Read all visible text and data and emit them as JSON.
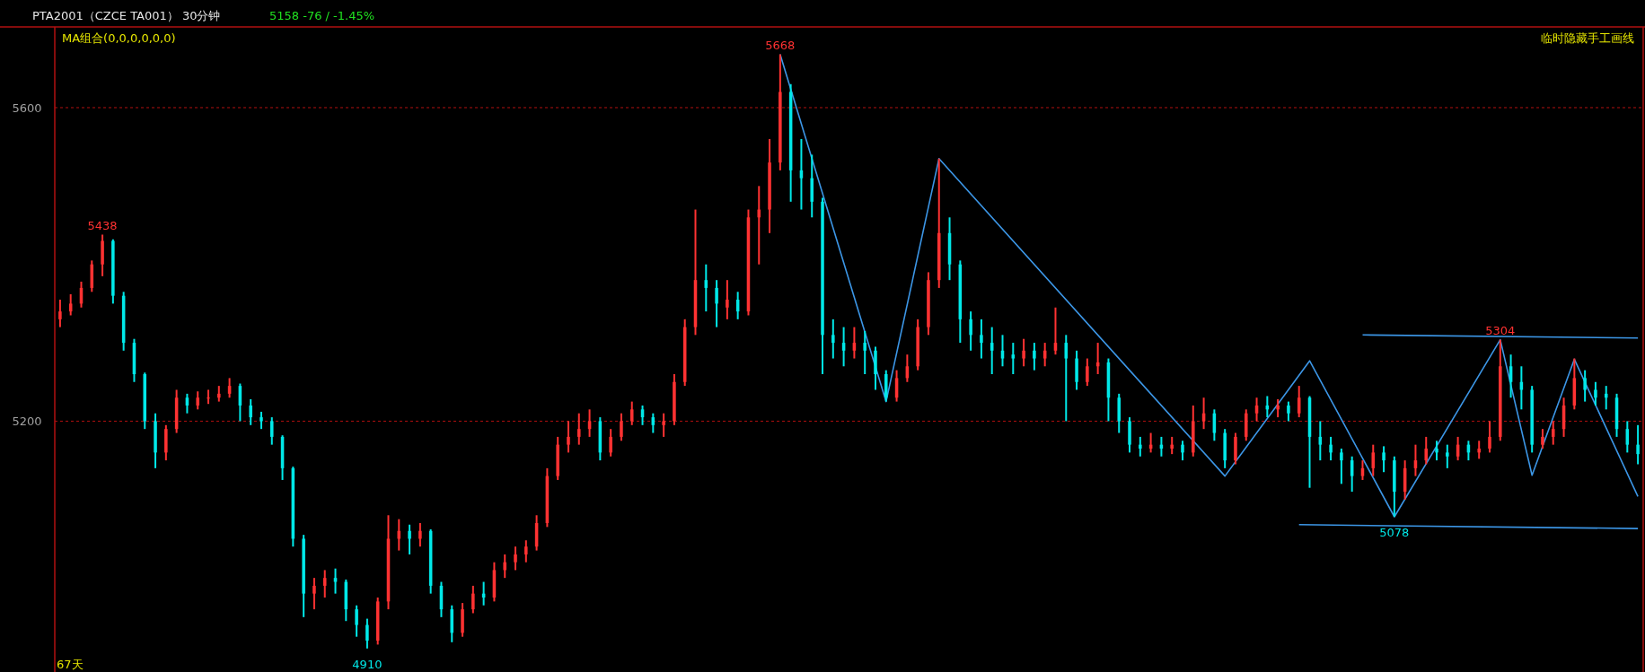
{
  "chart_data": {
    "type": "candlestick",
    "title": "PTA2001（CZCE TA001） 30分钟",
    "subtitle": "5158  -76 / -1.45%",
    "annotations": [
      "MA组合(0,0,0,0,0,0)",
      "临时隐藏手工画线",
      "67天",
      {
        "text": "5438",
        "y": 5438
      },
      {
        "text": "5668",
        "y": 5668
      },
      {
        "text": "4910",
        "y": 4910
      },
      {
        "text": "5078",
        "y": 5078
      },
      {
        "text": "5304",
        "y": 5304
      }
    ],
    "colors": [
      "#ff3232",
      "#ff3232",
      "#ff3232",
      "#ff3232",
      "#ff3232",
      "#00e8e8",
      "#00e8e8",
      "#00e8e8",
      "#00e8e8",
      "#00e8e8",
      "#ff3232",
      "#ff3232",
      "#00e8e8",
      "#ff3232",
      "#ff3232",
      "#ff3232",
      "#ff3232",
      "#00e8e8",
      "#00e8e8",
      "#00e8e8",
      "#00e8e8",
      "#00e8e8",
      "#00e8e8",
      "#00e8e8",
      "#ff3232",
      "#ff3232",
      "#00e8e8",
      "#00e8e8",
      "#00e8e8",
      "#00e8e8",
      "#ff3232",
      "#ff3232",
      "#ff3232",
      "#00e8e8",
      "#ff3232",
      "#00e8e8",
      "#00e8e8",
      "#00e8e8",
      "#ff3232",
      "#ff3232",
      "#00e8e8",
      "#ff3232",
      "#ff3232",
      "#ff3232",
      "#ff3232",
      "#ff3232",
      "#ff3232",
      "#ff3232",
      "#ff3232",
      "#ff3232",
      "#ff3232",
      "#00e8e8",
      "#ff3232",
      "#ff3232",
      "#ff3232",
      "#00e8e8",
      "#00e8e8",
      "#ff3232",
      "#ff3232",
      "#ff3232",
      "#ff3232",
      "#00e8e8",
      "#00e8e8",
      "#ff3232",
      "#00e8e8",
      "#ff3232",
      "#ff3232",
      "#ff3232",
      "#ff3232",
      "#00e8e8",
      "#00e8e8",
      "#00e8e8",
      "#00e8e8",
      "#00e8e8",
      "#00e8e8",
      "#ff3232",
      "#00e8e8",
      "#00e8e8",
      "#00e8e8",
      "#ff3232",
      "#ff3232",
      "#ff3232",
      "#ff3232",
      "#ff3232",
      "#00e8e8",
      "#00e8e8",
      "#00e8e8",
      "#00e8e8",
      "#00e8e8",
      "#00e8e8",
      "#00e8e8",
      "#ff3232",
      "#00e8e8",
      "#ff3232",
      "#ff3232",
      "#00e8e8",
      "#00e8e8",
      "#ff3232",
      "#ff3232",
      "#00e8e8",
      "#00e8e8",
      "#00e8e8",
      "#00e8e8",
      "#ff3232",
      "#00e8e8",
      "#ff3232",
      "#00e8e8",
      "#ff3232",
      "#ff3232",
      "#00e8e8",
      "#00e8e8",
      "#ff3232",
      "#ff3232",
      "#ff3232",
      "#00e8e8",
      "#ff3232",
      "#00e8e8",
      "#ff3232",
      "#00e8e8",
      "#00e8e8",
      "#00e8e8",
      "#00e8e8",
      "#00e8e8",
      "#ff3232",
      "#ff3232",
      "#00e8e8",
      "#00e8e8",
      "#ff3232",
      "#ff3232",
      "#ff3232",
      "#00e8e8",
      "#00e8e8",
      "#ff3232",
      "#00e8e8",
      "#ff3232",
      "#ff3232",
      "#ff3232",
      "#00e8e8",
      "#00e8e8",
      "#00e8e8",
      "#ff3232",
      "#ff3232",
      "#ff3232",
      "#ff3232",
      "#00e8e8",
      "#00e8e8",
      "#00e8e8",
      "#00e8e8",
      "#00e8e8",
      "#00e8e8"
    ],
    "ylim": [
      4880,
      5703
    ],
    "yticks": [
      5200,
      5600
    ],
    "grid": "y",
    "categories": [
      null,
      null,
      null,
      null,
      null,
      null,
      null,
      null,
      null,
      null,
      null,
      null,
      null,
      null,
      null,
      null,
      null,
      null,
      null,
      null,
      null,
      null,
      null,
      null,
      null,
      null,
      null,
      null,
      null,
      null,
      null,
      null,
      null,
      null,
      null,
      null,
      null,
      null,
      null,
      null,
      null,
      null,
      null,
      null,
      null,
      null,
      null,
      null,
      null,
      null,
      null,
      null,
      null,
      null,
      null,
      null,
      null,
      null,
      null,
      null,
      null,
      null,
      null,
      null,
      null,
      null,
      null,
      null,
      null,
      null,
      null,
      null,
      null,
      null,
      null,
      null,
      null,
      null,
      null,
      null,
      null,
      null,
      null,
      null,
      null,
      null,
      null,
      null,
      null,
      null,
      null,
      null,
      null,
      null,
      null,
      null,
      null,
      null,
      null,
      null,
      null,
      null,
      null,
      null,
      null,
      null,
      null,
      null,
      null,
      null,
      null,
      null,
      null,
      null,
      null,
      null,
      null,
      null,
      null,
      null,
      null,
      null,
      null,
      null,
      null,
      null,
      null,
      null,
      null,
      null,
      null,
      null,
      null,
      null,
      null,
      null,
      null,
      null,
      null,
      null,
      null,
      null,
      null,
      null,
      null,
      null,
      null,
      null,
      null,
      null
    ],
    "ohlc": [
      [
        5330,
        5355,
        5320,
        5340
      ],
      [
        5340,
        5362,
        5335,
        5350
      ],
      [
        5350,
        5378,
        5345,
        5370
      ],
      [
        5370,
        5405,
        5365,
        5400
      ],
      [
        5400,
        5438,
        5385,
        5430
      ],
      [
        5430,
        5432,
        5350,
        5360
      ],
      [
        5360,
        5365,
        5290,
        5300
      ],
      [
        5300,
        5305,
        5250,
        5260
      ],
      [
        5260,
        5262,
        5190,
        5200
      ],
      [
        5200,
        5210,
        5140,
        5160
      ],
      [
        5160,
        5195,
        5150,
        5190
      ],
      [
        5190,
        5240,
        5185,
        5230
      ],
      [
        5230,
        5235,
        5210,
        5220
      ],
      [
        5220,
        5238,
        5215,
        5230
      ],
      [
        5230,
        5240,
        5222,
        5230
      ],
      [
        5230,
        5245,
        5225,
        5235
      ],
      [
        5235,
        5255,
        5230,
        5245
      ],
      [
        5245,
        5248,
        5200,
        5220
      ],
      [
        5220,
        5228,
        5195,
        5205
      ],
      [
        5205,
        5212,
        5190,
        5200
      ],
      [
        5200,
        5205,
        5170,
        5180
      ],
      [
        5180,
        5182,
        5125,
        5140
      ],
      [
        5140,
        5142,
        5040,
        5050
      ],
      [
        5050,
        5055,
        4950,
        4980
      ],
      [
        4980,
        5000,
        4960,
        4990
      ],
      [
        4990,
        5010,
        4975,
        5000
      ],
      [
        5000,
        5012,
        4980,
        4995
      ],
      [
        4995,
        4998,
        4945,
        4960
      ],
      [
        4960,
        4965,
        4925,
        4940
      ],
      [
        4940,
        4948,
        4910,
        4920
      ],
      [
        4920,
        4975,
        4915,
        4970
      ],
      [
        4970,
        5080,
        4960,
        5050
      ],
      [
        5050,
        5075,
        5035,
        5060
      ],
      [
        5060,
        5068,
        5030,
        5050
      ],
      [
        5050,
        5070,
        5040,
        5060
      ],
      [
        5060,
        5062,
        4980,
        4990
      ],
      [
        4990,
        4995,
        4950,
        4960
      ],
      [
        4960,
        4965,
        4918,
        4930
      ],
      [
        4930,
        4968,
        4925,
        4960
      ],
      [
        4960,
        4990,
        4955,
        4980
      ],
      [
        4980,
        4995,
        4965,
        4975
      ],
      [
        4975,
        5020,
        4970,
        5010
      ],
      [
        5010,
        5030,
        5000,
        5020
      ],
      [
        5020,
        5040,
        5010,
        5030
      ],
      [
        5030,
        5048,
        5020,
        5040
      ],
      [
        5040,
        5080,
        5035,
        5070
      ],
      [
        5070,
        5140,
        5065,
        5130
      ],
      [
        5130,
        5180,
        5125,
        5170
      ],
      [
        5170,
        5200,
        5160,
        5180
      ],
      [
        5180,
        5210,
        5170,
        5190
      ],
      [
        5190,
        5215,
        5180,
        5200
      ],
      [
        5200,
        5205,
        5150,
        5160
      ],
      [
        5160,
        5190,
        5155,
        5180
      ],
      [
        5180,
        5210,
        5175,
        5200
      ],
      [
        5200,
        5225,
        5195,
        5215
      ],
      [
        5215,
        5220,
        5195,
        5205
      ],
      [
        5205,
        5210,
        5185,
        5195
      ],
      [
        5195,
        5210,
        5180,
        5200
      ],
      [
        5200,
        5260,
        5195,
        5250
      ],
      [
        5250,
        5330,
        5245,
        5320
      ],
      [
        5320,
        5470,
        5310,
        5380
      ],
      [
        5380,
        5400,
        5340,
        5370
      ],
      [
        5370,
        5380,
        5320,
        5350
      ],
      [
        5345,
        5380,
        5330,
        5355
      ],
      [
        5355,
        5365,
        5330,
        5340
      ],
      [
        5340,
        5470,
        5335,
        5460
      ],
      [
        5460,
        5500,
        5400,
        5470
      ],
      [
        5470,
        5560,
        5440,
        5530
      ],
      [
        5530,
        5668,
        5520,
        5620
      ],
      [
        5620,
        5630,
        5480,
        5520
      ],
      [
        5520,
        5560,
        5470,
        5510
      ],
      [
        5510,
        5540,
        5460,
        5480
      ],
      [
        5480,
        5485,
        5260,
        5310
      ],
      [
        5310,
        5330,
        5280,
        5300
      ],
      [
        5300,
        5320,
        5270,
        5290
      ],
      [
        5290,
        5320,
        5280,
        5300
      ],
      [
        5300,
        5315,
        5260,
        5290
      ],
      [
        5290,
        5295,
        5240,
        5260
      ],
      [
        5260,
        5265,
        5225,
        5230
      ],
      [
        5230,
        5265,
        5225,
        5255
      ],
      [
        5255,
        5285,
        5250,
        5270
      ],
      [
        5270,
        5330,
        5265,
        5320
      ],
      [
        5320,
        5390,
        5310,
        5380
      ],
      [
        5380,
        5535,
        5370,
        5440
      ],
      [
        5440,
        5460,
        5380,
        5400
      ],
      [
        5400,
        5405,
        5300,
        5330
      ],
      [
        5330,
        5340,
        5290,
        5310
      ],
      [
        5310,
        5330,
        5280,
        5300
      ],
      [
        5300,
        5320,
        5260,
        5290
      ],
      [
        5290,
        5310,
        5270,
        5280
      ],
      [
        5285,
        5300,
        5260,
        5280
      ],
      [
        5280,
        5305,
        5270,
        5290
      ],
      [
        5290,
        5300,
        5265,
        5280
      ],
      [
        5280,
        5300,
        5270,
        5290
      ],
      [
        5290,
        5345,
        5285,
        5300
      ],
      [
        5300,
        5310,
        5200,
        5280
      ],
      [
        5280,
        5290,
        5240,
        5250
      ],
      [
        5250,
        5280,
        5245,
        5270
      ],
      [
        5270,
        5300,
        5260,
        5275
      ],
      [
        5275,
        5280,
        5200,
        5230
      ],
      [
        5230,
        5235,
        5185,
        5200
      ],
      [
        5200,
        5205,
        5160,
        5170
      ],
      [
        5170,
        5180,
        5155,
        5165
      ],
      [
        5165,
        5185,
        5160,
        5170
      ],
      [
        5170,
        5180,
        5155,
        5165
      ],
      [
        5165,
        5180,
        5158,
        5170
      ],
      [
        5170,
        5175,
        5150,
        5160
      ],
      [
        5160,
        5220,
        5155,
        5200
      ],
      [
        5200,
        5230,
        5190,
        5210
      ],
      [
        5210,
        5215,
        5175,
        5185
      ],
      [
        5185,
        5190,
        5140,
        5150
      ],
      [
        5150,
        5185,
        5145,
        5180
      ],
      [
        5180,
        5215,
        5175,
        5210
      ],
      [
        5210,
        5230,
        5200,
        5220
      ],
      [
        5220,
        5232,
        5205,
        5215
      ],
      [
        5215,
        5228,
        5205,
        5220
      ],
      [
        5220,
        5225,
        5200,
        5210
      ],
      [
        5210,
        5245,
        5205,
        5230
      ],
      [
        5230,
        5232,
        5115,
        5180
      ],
      [
        5180,
        5200,
        5150,
        5170
      ],
      [
        5170,
        5180,
        5150,
        5160
      ],
      [
        5160,
        5165,
        5120,
        5150
      ],
      [
        5150,
        5155,
        5110,
        5130
      ],
      [
        5130,
        5150,
        5125,
        5140
      ],
      [
        5140,
        5170,
        5130,
        5160
      ],
      [
        5160,
        5168,
        5135,
        5150
      ],
      [
        5150,
        5155,
        5078,
        5110
      ],
      [
        5110,
        5150,
        5100,
        5140
      ],
      [
        5140,
        5170,
        5130,
        5150
      ],
      [
        5150,
        5180,
        5145,
        5165
      ],
      [
        5165,
        5175,
        5150,
        5160
      ],
      [
        5160,
        5170,
        5140,
        5155
      ],
      [
        5155,
        5180,
        5150,
        5170
      ],
      [
        5170,
        5175,
        5150,
        5160
      ],
      [
        5160,
        5175,
        5152,
        5165
      ],
      [
        5165,
        5200,
        5160,
        5180
      ],
      [
        5180,
        5304,
        5175,
        5270
      ],
      [
        5270,
        5285,
        5230,
        5250
      ],
      [
        5250,
        5270,
        5215,
        5240
      ],
      [
        5240,
        5245,
        5160,
        5170
      ],
      [
        5170,
        5190,
        5165,
        5180
      ],
      [
        5180,
        5200,
        5170,
        5190
      ],
      [
        5190,
        5230,
        5180,
        5220
      ],
      [
        5220,
        5280,
        5215,
        5255
      ],
      [
        5255,
        5265,
        5225,
        5240
      ],
      [
        5240,
        5250,
        5220,
        5230
      ],
      [
        5235,
        5245,
        5215,
        5230
      ],
      [
        5230,
        5235,
        5180,
        5190
      ],
      [
        5190,
        5200,
        5160,
        5170
      ],
      [
        5170,
        5195,
        5145,
        5158
      ]
    ],
    "series": [
      {
        "type": "line",
        "color": "#3c96e6",
        "values": [
          null,
          null,
          null,
          null,
          null,
          null,
          null,
          null,
          null,
          null,
          null,
          null,
          null,
          null,
          null,
          null,
          null,
          null,
          null,
          null,
          null,
          null,
          null,
          null,
          null,
          null,
          null,
          null,
          null,
          null,
          null,
          null,
          null,
          null,
          null,
          null,
          null,
          null,
          null,
          null,
          null,
          null,
          null,
          null,
          null,
          null,
          null,
          null,
          null,
          null,
          null,
          null,
          null,
          null,
          null,
          null,
          null,
          null,
          null,
          null,
          null,
          null,
          null,
          null,
          null,
          null,
          null,
          null,
          5668,
          null,
          null,
          null,
          null,
          null,
          null,
          null,
          null,
          null,
          5225,
          null,
          null,
          null,
          null,
          5535,
          null,
          null,
          null,
          null,
          null,
          null,
          null,
          null,
          null,
          null,
          null,
          null,
          null,
          null,
          null,
          null,
          null,
          null,
          null,
          null,
          null,
          null,
          null,
          null,
          null,
          null,
          5130,
          null,
          null,
          null,
          null,
          null,
          null,
          null,
          5277,
          null,
          null,
          null,
          null,
          null,
          null,
          null,
          5078,
          null,
          null,
          null,
          null,
          null,
          null,
          null,
          null,
          null,
          5304,
          null,
          null,
          5131,
          null,
          null,
          null,
          5279,
          null,
          null,
          null,
          null,
          null,
          5104
        ]
      },
      {
        "type": "line",
        "color": "#3c96e6",
        "values": [
          null,
          null,
          null,
          null,
          null,
          null,
          null,
          null,
          null,
          null,
          null,
          null,
          null,
          null,
          null,
          null,
          null,
          null,
          null,
          null,
          null,
          null,
          null,
          null,
          null,
          null,
          null,
          null,
          null,
          null,
          null,
          null,
          null,
          null,
          null,
          null,
          null,
          null,
          null,
          null,
          null,
          null,
          null,
          null,
          null,
          null,
          null,
          null,
          null,
          null,
          null,
          null,
          null,
          null,
          null,
          null,
          null,
          null,
          null,
          null,
          null,
          null,
          null,
          null,
          null,
          null,
          null,
          null,
          null,
          null,
          null,
          null,
          null,
          null,
          null,
          null,
          null,
          null,
          null,
          null,
          null,
          null,
          null,
          null,
          null,
          null,
          null,
          null,
          null,
          null,
          null,
          null,
          null,
          null,
          null,
          null,
          null,
          null,
          null,
          null,
          null,
          null,
          null,
          null,
          null,
          null,
          null,
          null,
          null,
          null,
          null,
          null,
          null,
          null,
          null,
          null,
          null,
          null,
          null,
          null,
          null,
          null,
          null,
          5310,
          null,
          null,
          null,
          null,
          null,
          null,
          null,
          null,
          null,
          null,
          null,
          null,
          null,
          null,
          null,
          null,
          null,
          null,
          null,
          null,
          null,
          null,
          null,
          null,
          null,
          5306
        ]
      },
      {
        "type": "line",
        "color": "#3c96e6",
        "values": [
          null,
          null,
          null,
          null,
          null,
          null,
          null,
          null,
          null,
          null,
          null,
          null,
          null,
          null,
          null,
          null,
          null,
          null,
          null,
          null,
          null,
          null,
          null,
          null,
          null,
          null,
          null,
          null,
          null,
          null,
          null,
          null,
          null,
          null,
          null,
          null,
          null,
          null,
          null,
          null,
          null,
          null,
          null,
          null,
          null,
          null,
          null,
          null,
          null,
          null,
          null,
          null,
          null,
          null,
          null,
          null,
          null,
          null,
          null,
          null,
          null,
          null,
          null,
          null,
          null,
          null,
          null,
          null,
          null,
          null,
          null,
          null,
          null,
          null,
          null,
          null,
          null,
          null,
          null,
          null,
          null,
          null,
          null,
          null,
          null,
          null,
          null,
          null,
          null,
          null,
          null,
          null,
          null,
          null,
          null,
          null,
          null,
          null,
          null,
          null,
          null,
          null,
          null,
          null,
          null,
          null,
          null,
          null,
          null,
          null,
          null,
          null,
          null,
          null,
          null,
          null,
          null,
          5068,
          null,
          null,
          null,
          null,
          null,
          null,
          null,
          null,
          null,
          null,
          null,
          null,
          null,
          null,
          null,
          null,
          null,
          null,
          null,
          null,
          null,
          null,
          null,
          null,
          null,
          null,
          null,
          null,
          null,
          null,
          null,
          5063
        ]
      }
    ]
  }
}
